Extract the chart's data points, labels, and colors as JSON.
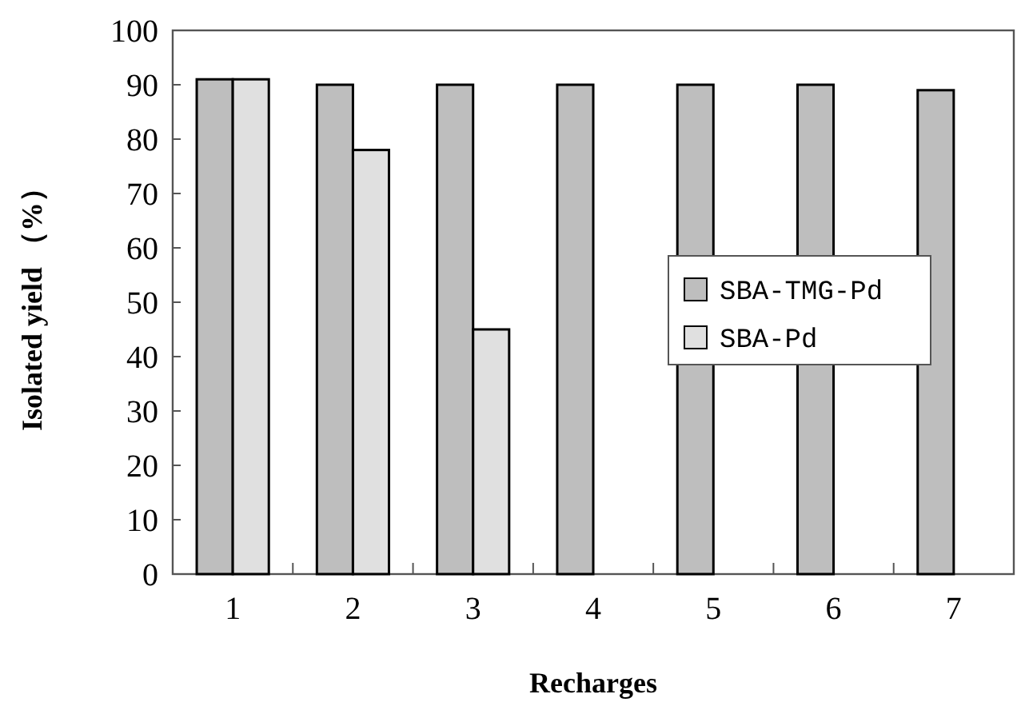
{
  "chart_data": {
    "type": "bar",
    "xlabel": "Recharges",
    "ylabel": "Isolated yield （%）",
    "categories": [
      "1",
      "2",
      "3",
      "4",
      "5",
      "6",
      "7"
    ],
    "series": [
      {
        "name": "SBA-TMG-Pd",
        "color": "#bebebe",
        "values": [
          91,
          90,
          90,
          90,
          90,
          90,
          89
        ]
      },
      {
        "name": "SBA-Pd",
        "color": "#e0e0e0",
        "values": [
          91,
          78,
          45,
          null,
          null,
          null,
          null
        ]
      }
    ],
    "ylim": [
      0,
      100
    ],
    "yticks": [
      0,
      10,
      20,
      30,
      40,
      50,
      60,
      70,
      80,
      90,
      100
    ],
    "grid": false,
    "legend": "right"
  }
}
